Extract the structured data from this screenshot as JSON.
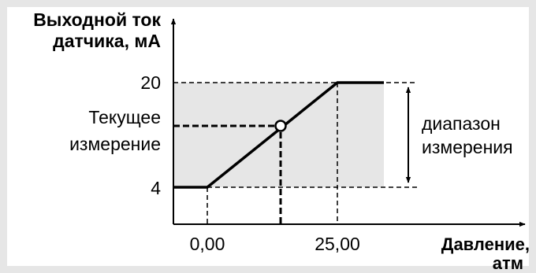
{
  "colors": {
    "frame": "#e6e6e6",
    "page": "#ffffff",
    "range_fill": "#e6e6e6",
    "ink": "#000000",
    "marker_fill": "#ffffff"
  },
  "y_axis": {
    "label_line1": "Выходной ток",
    "label_line2": "датчика, мА",
    "ticks": [
      "20",
      "4"
    ]
  },
  "x_axis": {
    "label_line1": "Давление,",
    "label_line2": "атм",
    "ticks": [
      "0,00",
      "25,00"
    ]
  },
  "current_measurement": {
    "line1": "Текущее",
    "line2": "измерение"
  },
  "measurement_range": {
    "line1": "диапазон",
    "line2": "измерения"
  }
}
